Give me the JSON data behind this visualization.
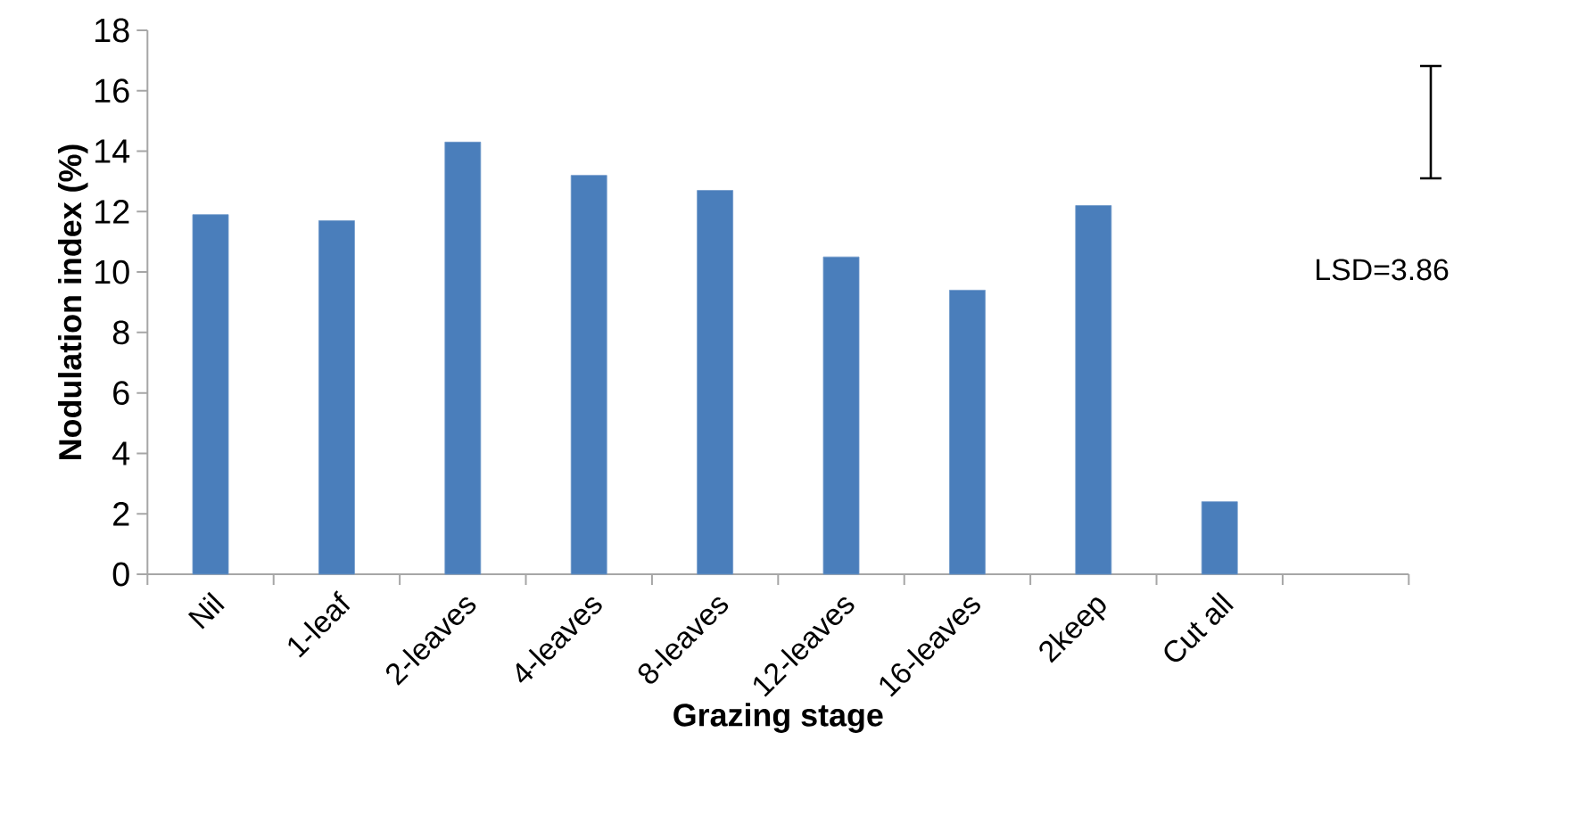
{
  "chart_data": {
    "type": "bar",
    "xlabel": "Grazing stage",
    "ylabel": "Nodulation index (%)",
    "categories": [
      "Nil",
      "1-leaf",
      "2-leaves",
      "4-leaves",
      "8-leaves",
      "12-leaves",
      "16-leaves",
      "2keep",
      "Cut all",
      null
    ],
    "values": [
      11.9,
      11.7,
      14.3,
      13.2,
      12.7,
      10.5,
      9.4,
      12.2,
      2.4,
      null
    ],
    "color": "#4a7ebb",
    "ylim": [
      0,
      18
    ],
    "yticks": [
      0,
      2,
      4,
      6,
      8,
      10,
      12,
      14,
      16,
      18
    ],
    "annotations": [
      "LSD=3.86"
    ]
  }
}
